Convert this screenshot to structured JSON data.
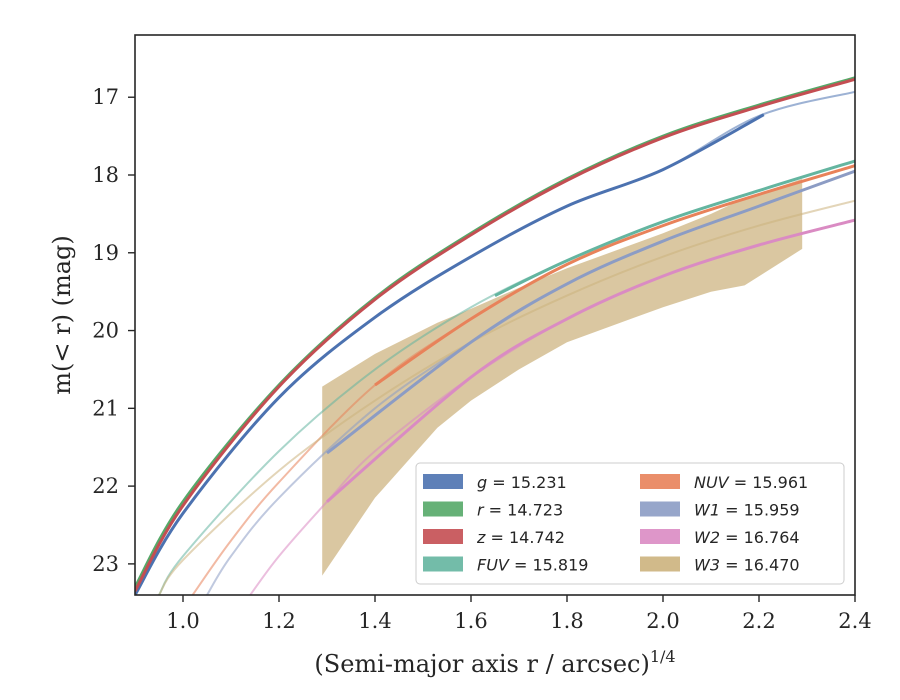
{
  "chart_data": {
    "type": "line",
    "xlabel": "(Semi-major axis r / arcsec)",
    "xlabel_exponent": "1/4",
    "ylabel": "m(< r) (mag)",
    "xlim": [
      0.9,
      2.4
    ],
    "ylim": [
      23.4,
      16.2
    ],
    "y_inverted": true,
    "x_ticks": [
      1.0,
      1.2,
      1.4,
      1.6,
      1.8,
      2.0,
      2.2,
      2.4
    ],
    "x_tick_labels": [
      "1.0",
      "1.2",
      "1.4",
      "1.6",
      "1.8",
      "2.0",
      "2.2",
      "2.4"
    ],
    "y_ticks": [
      17,
      18,
      19,
      20,
      21,
      22,
      23
    ],
    "y_tick_labels": [
      "17",
      "18",
      "19",
      "20",
      "21",
      "22",
      "23"
    ],
    "grid": false,
    "legend_position": "lower-right",
    "series": [
      {
        "name": "g",
        "legend_value": "15.231",
        "color": "#4c72b0",
        "data_x": [
          0.9,
          1.0,
          1.2,
          1.4,
          1.6,
          1.8,
          2.0,
          2.21
        ],
        "fit_x": [
          0.9,
          1.0,
          1.2,
          1.4,
          1.6,
          1.8,
          2.0,
          2.2,
          2.4
        ],
        "fit_y": [
          23.4,
          22.35,
          20.86,
          19.83,
          19.05,
          18.4,
          17.93,
          17.24,
          16.93
        ]
      },
      {
        "name": "r",
        "legend_value": "14.723",
        "color": "#55a868",
        "data_x": [
          0.9,
          1.0,
          1.2,
          1.4,
          1.6,
          1.8,
          2.0,
          2.2,
          2.4
        ],
        "fit_x": [
          0.9,
          1.0,
          1.2,
          1.4,
          1.6,
          1.8,
          2.0,
          2.2,
          2.4
        ],
        "fit_y": [
          23.3,
          22.2,
          20.7,
          19.58,
          18.75,
          18.05,
          17.5,
          17.1,
          16.75
        ]
      },
      {
        "name": "z",
        "legend_value": "14.742",
        "color": "#c44e52",
        "data_x": [
          0.9,
          1.0,
          1.2,
          1.4,
          1.6,
          1.8,
          2.0,
          2.2,
          2.4
        ],
        "fit_x": [
          0.9,
          1.0,
          1.2,
          1.4,
          1.6,
          1.8,
          2.0,
          2.2,
          2.4
        ],
        "fit_y": [
          23.35,
          22.25,
          20.72,
          19.6,
          18.77,
          18.07,
          17.52,
          17.12,
          16.77
        ]
      },
      {
        "name": "FUV",
        "legend_value": "15.819",
        "color": "#64b5a0",
        "data_x": [
          1.65,
          1.8,
          2.0,
          2.2,
          2.4
        ],
        "fit_x": [
          0.95,
          1.0,
          1.2,
          1.4,
          1.6,
          1.8,
          2.0,
          2.2,
          2.4
        ],
        "fit_y": [
          23.4,
          22.9,
          21.55,
          20.5,
          19.7,
          19.1,
          18.6,
          18.2,
          17.82
        ]
      },
      {
        "name": "NUV",
        "legend_value": "15.961",
        "color": "#e8825a",
        "data_x": [
          1.4,
          1.6,
          1.8,
          2.0,
          2.2,
          2.4
        ],
        "fit_x": [
          1.02,
          1.1,
          1.2,
          1.4,
          1.6,
          1.8,
          2.0,
          2.2,
          2.4
        ],
        "fit_y": [
          23.4,
          22.7,
          21.95,
          20.7,
          19.85,
          19.15,
          18.65,
          18.25,
          17.88
        ]
      },
      {
        "name": "W1",
        "legend_value": "15.959",
        "color": "#8c9cc4",
        "data_x": [
          1.3,
          1.6,
          1.8,
          2.0,
          2.2,
          2.4
        ],
        "fit_x": [
          1.05,
          1.1,
          1.2,
          1.4,
          1.6,
          1.8,
          2.0,
          2.2,
          2.4
        ],
        "fit_y": [
          23.4,
          22.9,
          22.15,
          21.0,
          20.15,
          19.4,
          18.85,
          18.4,
          17.95
        ]
      },
      {
        "name": "W2",
        "legend_value": "16.764",
        "color": "#da8bc3",
        "data_x": [
          1.3,
          1.6,
          1.8,
          2.0,
          2.2,
          2.4
        ],
        "fit_x": [
          1.14,
          1.2,
          1.3,
          1.4,
          1.6,
          1.8,
          2.0,
          2.2,
          2.4
        ],
        "fit_y": [
          23.4,
          22.9,
          22.2,
          21.55,
          20.6,
          19.85,
          19.3,
          18.9,
          18.58
        ]
      },
      {
        "name": "W3",
        "legend_value": "16.470",
        "color": "#ccb27d",
        "fit_x": [
          0.95,
          1.0,
          1.2,
          1.4,
          1.6,
          1.8,
          2.0,
          2.2,
          2.4
        ],
        "fit_y": [
          23.4,
          22.95,
          21.8,
          20.9,
          20.15,
          19.55,
          19.05,
          18.65,
          18.33
        ],
        "band_x": [
          1.29,
          1.4,
          1.53,
          1.6,
          1.7,
          1.8,
          2.0,
          2.1,
          2.17,
          2.29
        ],
        "band_upper": [
          20.72,
          20.3,
          19.9,
          19.72,
          19.45,
          19.2,
          18.75,
          18.5,
          18.3,
          18.05
        ],
        "band_lower": [
          23.15,
          22.15,
          21.25,
          20.9,
          20.5,
          20.15,
          19.7,
          19.5,
          19.42,
          18.95
        ]
      }
    ]
  }
}
